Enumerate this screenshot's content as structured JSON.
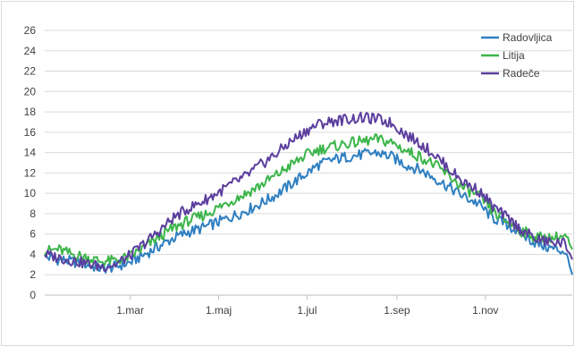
{
  "chart_data": {
    "type": "line",
    "title": "",
    "xlabel": "",
    "ylabel": "",
    "ylim": [
      0,
      26
    ],
    "yticks": [
      0,
      2,
      4,
      6,
      8,
      10,
      12,
      14,
      16,
      18,
      20,
      22,
      24,
      26
    ],
    "xlim": [
      1,
      365
    ],
    "xticks": [
      {
        "label": "1.mar",
        "day": 60
      },
      {
        "label": "1.maj",
        "day": 121
      },
      {
        "label": "1.jul",
        "day": 182
      },
      {
        "label": "1.sep",
        "day": 244
      },
      {
        "label": "1.nov",
        "day": 305
      }
    ],
    "grid": "horizontal",
    "legend_position": "top-right",
    "series": [
      {
        "name": "Radovljica",
        "color": "#2f7fc1",
        "points": [
          [
            1,
            3.8
          ],
          [
            10,
            3.5
          ],
          [
            20,
            3.3
          ],
          [
            30,
            3.0
          ],
          [
            40,
            2.6
          ],
          [
            50,
            2.8
          ],
          [
            60,
            3.2
          ],
          [
            70,
            4.0
          ],
          [
            80,
            4.8
          ],
          [
            90,
            5.6
          ],
          [
            100,
            6.2
          ],
          [
            110,
            6.6
          ],
          [
            121,
            7.2
          ],
          [
            130,
            7.7
          ],
          [
            140,
            8.3
          ],
          [
            150,
            9.0
          ],
          [
            160,
            9.8
          ],
          [
            170,
            10.8
          ],
          [
            182,
            12.0
          ],
          [
            190,
            12.8
          ],
          [
            200,
            13.3
          ],
          [
            210,
            13.6
          ],
          [
            220,
            13.8
          ],
          [
            230,
            14.0
          ],
          [
            240,
            13.6
          ],
          [
            244,
            13.3
          ],
          [
            250,
            12.8
          ],
          [
            260,
            12.3
          ],
          [
            270,
            11.5
          ],
          [
            280,
            10.6
          ],
          [
            290,
            9.7
          ],
          [
            300,
            9.0
          ],
          [
            305,
            8.3
          ],
          [
            310,
            7.6
          ],
          [
            320,
            6.9
          ],
          [
            330,
            6.0
          ],
          [
            340,
            5.1
          ],
          [
            350,
            4.6
          ],
          [
            360,
            4.3
          ],
          [
            365,
            2.0
          ]
        ]
      },
      {
        "name": "Litija",
        "color": "#3cb54a",
        "points": [
          [
            1,
            4.3
          ],
          [
            10,
            4.5
          ],
          [
            20,
            4.0
          ],
          [
            30,
            3.7
          ],
          [
            40,
            3.3
          ],
          [
            50,
            3.4
          ],
          [
            60,
            3.8
          ],
          [
            70,
            4.7
          ],
          [
            80,
            5.7
          ],
          [
            90,
            6.6
          ],
          [
            100,
            7.3
          ],
          [
            110,
            7.8
          ],
          [
            121,
            8.6
          ],
          [
            130,
            9.3
          ],
          [
            140,
            10.0
          ],
          [
            150,
            10.8
          ],
          [
            160,
            11.7
          ],
          [
            170,
            12.7
          ],
          [
            182,
            13.8
          ],
          [
            190,
            14.3
          ],
          [
            200,
            14.6
          ],
          [
            210,
            14.9
          ],
          [
            220,
            15.1
          ],
          [
            230,
            15.3
          ],
          [
            240,
            15.0
          ],
          [
            244,
            14.7
          ],
          [
            250,
            14.2
          ],
          [
            260,
            13.6
          ],
          [
            270,
            12.8
          ],
          [
            280,
            11.7
          ],
          [
            290,
            10.5
          ],
          [
            300,
            9.8
          ],
          [
            305,
            9.1
          ],
          [
            310,
            8.2
          ],
          [
            320,
            7.2
          ],
          [
            330,
            6.3
          ],
          [
            340,
            5.7
          ],
          [
            350,
            5.6
          ],
          [
            360,
            5.8
          ],
          [
            365,
            4.5
          ]
        ]
      },
      {
        "name": "Radeče",
        "color": "#5b3e9e",
        "points": [
          [
            1,
            4.0
          ],
          [
            10,
            3.7
          ],
          [
            20,
            3.4
          ],
          [
            30,
            3.1
          ],
          [
            40,
            2.8
          ],
          [
            50,
            3.0
          ],
          [
            60,
            3.9
          ],
          [
            70,
            5.1
          ],
          [
            80,
            6.3
          ],
          [
            90,
            7.6
          ],
          [
            100,
            8.5
          ],
          [
            110,
            9.2
          ],
          [
            121,
            10.1
          ],
          [
            130,
            10.9
          ],
          [
            140,
            11.7
          ],
          [
            150,
            12.8
          ],
          [
            160,
            13.8
          ],
          [
            170,
            15.0
          ],
          [
            182,
            16.2
          ],
          [
            190,
            16.8
          ],
          [
            200,
            17.1
          ],
          [
            210,
            17.3
          ],
          [
            220,
            17.4
          ],
          [
            230,
            17.3
          ],
          [
            240,
            16.9
          ],
          [
            244,
            16.5
          ],
          [
            250,
            15.8
          ],
          [
            260,
            14.9
          ],
          [
            270,
            13.8
          ],
          [
            280,
            12.4
          ],
          [
            290,
            11.1
          ],
          [
            300,
            10.3
          ],
          [
            305,
            9.6
          ],
          [
            310,
            8.7
          ],
          [
            320,
            7.6
          ],
          [
            330,
            6.4
          ],
          [
            340,
            5.5
          ],
          [
            350,
            5.2
          ],
          [
            360,
            5.1
          ],
          [
            365,
            3.5
          ]
        ]
      }
    ]
  }
}
